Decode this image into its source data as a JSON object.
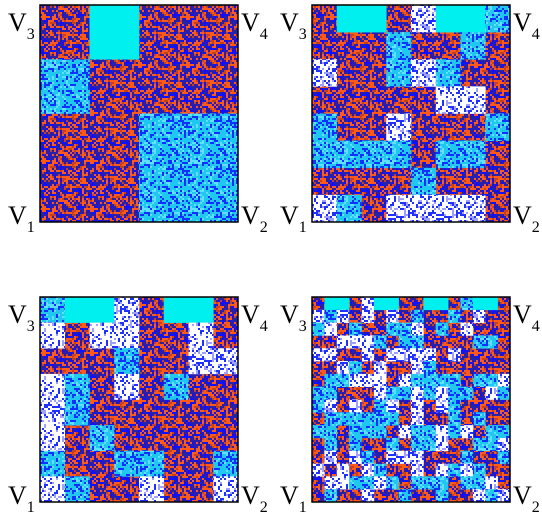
{
  "panels": [
    {
      "corners": [
        {
          "base": "V",
          "sub": "3"
        },
        {
          "base": "V",
          "sub": "4"
        },
        {
          "base": "V",
          "sub": "1"
        },
        {
          "base": "V",
          "sub": "2"
        }
      ]
    },
    {
      "corners": [
        {
          "base": "V",
          "sub": "3"
        },
        {
          "base": "V",
          "sub": "4"
        },
        {
          "base": "V",
          "sub": "1"
        },
        {
          "base": "V",
          "sub": "2"
        }
      ]
    },
    {
      "corners": [
        {
          "base": "V",
          "sub": "3"
        },
        {
          "base": "V",
          "sub": "4"
        },
        {
          "base": "V",
          "sub": "1"
        },
        {
          "base": "V",
          "sub": "2"
        }
      ]
    },
    {
      "corners": [
        {
          "base": "V",
          "sub": "3"
        },
        {
          "base": "V",
          "sub": "4"
        },
        {
          "base": "V",
          "sub": "1"
        },
        {
          "base": "V",
          "sub": "2"
        }
      ]
    }
  ]
}
